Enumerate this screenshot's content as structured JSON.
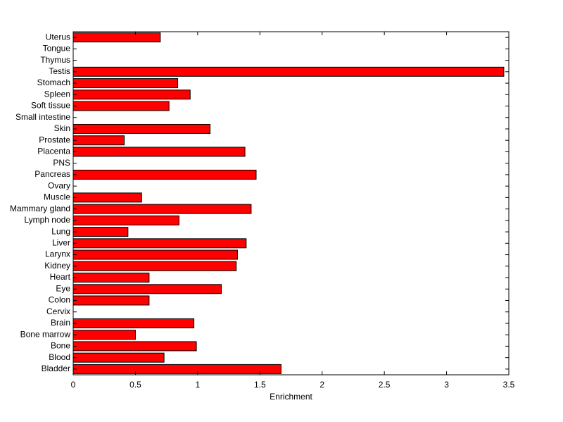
{
  "chart_data": {
    "type": "bar",
    "orientation": "horizontal",
    "title": "",
    "xlabel": "Enrichment",
    "ylabel": "",
    "xlim": [
      0,
      3.5
    ],
    "xticks": [
      "0",
      "0.5",
      "1",
      "1.5",
      "2",
      "2.5",
      "3",
      "3.5"
    ],
    "grid": false,
    "bar_color": "#ff0000",
    "edge_color": "#000000",
    "categories": [
      "Uterus",
      "Tongue",
      "Thymus",
      "Testis",
      "Stomach",
      "Spleen",
      "Soft tissue",
      "Small intestine",
      "Skin",
      "Prostate",
      "Placenta",
      "PNS",
      "Pancreas",
      "Ovary",
      "Muscle",
      "Mammary gland",
      "Lymph node",
      "Lung",
      "Liver",
      "Larynx",
      "Kidney",
      "Heart",
      "Eye",
      "Colon",
      "Cervix",
      "Brain",
      "Bone marrow",
      "Bone",
      "Blood",
      "Bladder"
    ],
    "values": [
      0.7,
      0,
      0,
      3.46,
      0.84,
      0.94,
      0.77,
      0,
      1.1,
      0.41,
      1.38,
      0,
      1.47,
      0,
      0.55,
      1.43,
      0.85,
      0.44,
      1.39,
      1.32,
      1.31,
      0.61,
      1.19,
      0.61,
      0,
      0.97,
      0.5,
      0.99,
      0.73,
      1.67
    ]
  }
}
